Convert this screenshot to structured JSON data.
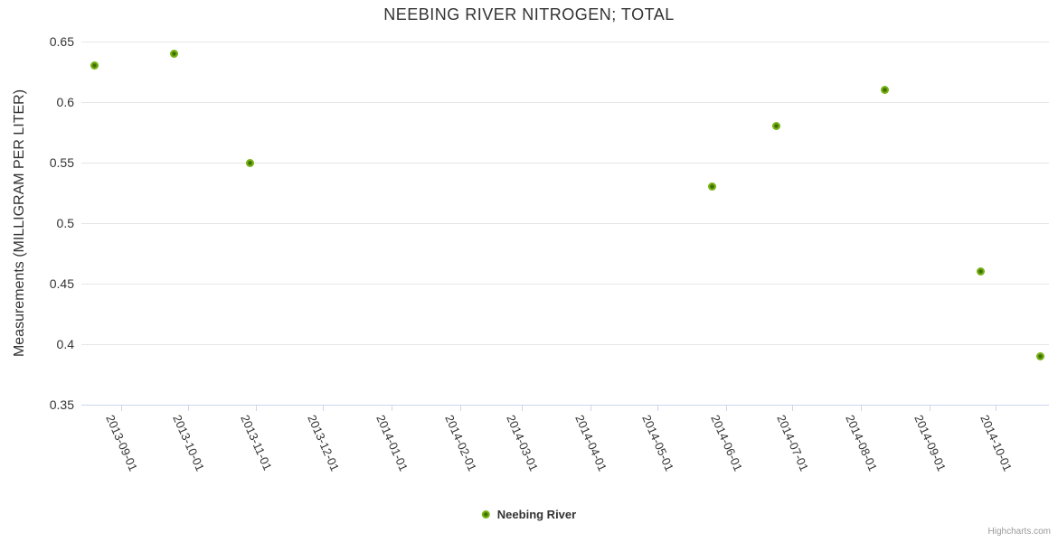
{
  "chart_data": {
    "type": "scatter",
    "title": "NEEBING RIVER NITROGEN; TOTAL",
    "xlabel": "",
    "ylabel": "Measurements (MILLIGRAM PER LITER)",
    "ylim": [
      0.35,
      0.65
    ],
    "y_ticks": [
      0.65,
      0.6,
      0.55,
      0.5,
      0.45,
      0.4,
      0.35
    ],
    "x_tick_labels": [
      "2013-09-01",
      "2013-10-01",
      "2013-11-01",
      "2013-12-01",
      "2014-01-01",
      "2014-02-01",
      "2014-03-01",
      "2014-04-01",
      "2014-05-01",
      "2014-06-01",
      "2014-07-01",
      "2014-08-01",
      "2014-09-01",
      "2014-10-01"
    ],
    "x_range": [
      "2013-08-14",
      "2014-10-25"
    ],
    "grid": "horizontal-only",
    "legend_position": "bottom-center",
    "series": [
      {
        "name": "Neebing River",
        "marker_color": "#76b114",
        "marker_core_color": "#3f7000",
        "points": [
          {
            "date": "2013-08-20",
            "value": 0.63
          },
          {
            "date": "2013-09-25",
            "value": 0.64
          },
          {
            "date": "2013-10-29",
            "value": 0.55
          },
          {
            "date": "2014-05-26",
            "value": 0.53
          },
          {
            "date": "2014-06-24",
            "value": 0.58
          },
          {
            "date": "2014-08-12",
            "value": 0.61
          },
          {
            "date": "2014-09-24",
            "value": 0.46
          },
          {
            "date": "2014-10-21",
            "value": 0.39
          }
        ]
      }
    ],
    "colors": {
      "grid_line": "#e6e6e6",
      "axis_line": "#ccd6eb",
      "text": "#333333",
      "credits_text": "#999999"
    },
    "credits": "Highcharts.com"
  }
}
